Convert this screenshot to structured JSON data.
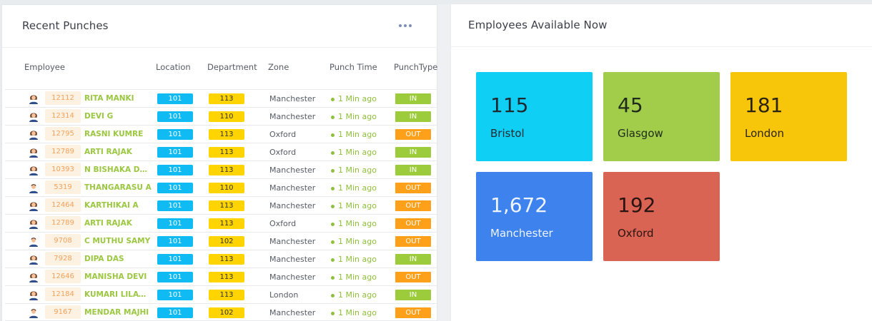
{
  "recent_punches": {
    "title": "Recent Punches",
    "menu_icon": "more-horizontal-icon",
    "columns": {
      "employee": "Employee",
      "location": "Location",
      "department": "Department",
      "zone": "Zone",
      "punch_time": "Punch Time",
      "punch_type": "PunchType"
    },
    "rows": [
      {
        "id": "12112",
        "name": "RITA MANKI",
        "location": "101",
        "department": "113",
        "zone": "Manchester",
        "time": "1 Min ago",
        "type": "IN",
        "avatar": "female-avatar-icon"
      },
      {
        "id": "12314",
        "name": "DEVI G",
        "location": "101",
        "department": "110",
        "zone": "Manchester",
        "time": "1 Min ago",
        "type": "IN",
        "avatar": "female-avatar-icon"
      },
      {
        "id": "12795",
        "name": "RASNI KUMRE",
        "location": "101",
        "department": "113",
        "zone": "Oxford",
        "time": "1 Min ago",
        "type": "OUT",
        "avatar": "female-avatar-icon"
      },
      {
        "id": "12789",
        "name": "ARTI RAJAK",
        "location": "101",
        "department": "113",
        "zone": "Oxford",
        "time": "1 Min ago",
        "type": "IN",
        "avatar": "female-avatar-icon"
      },
      {
        "id": "10393",
        "name": "N BISHAKA DAS ...",
        "location": "101",
        "department": "113",
        "zone": "Manchester",
        "time": "1 Min ago",
        "type": "IN",
        "avatar": "female-avatar-icon"
      },
      {
        "id": "5319",
        "name": "THANGARASU A",
        "location": "101",
        "department": "110",
        "zone": "Manchester",
        "time": "1 Min ago",
        "type": "OUT",
        "avatar": "male-avatar-icon"
      },
      {
        "id": "12464",
        "name": "KARTHIKAI A",
        "location": "101",
        "department": "113",
        "zone": "Manchester",
        "time": "1 Min ago",
        "type": "OUT",
        "avatar": "female-avatar-icon"
      },
      {
        "id": "12789",
        "name": "ARTI RAJAK",
        "location": "101",
        "department": "113",
        "zone": "Oxford",
        "time": "1 Min ago",
        "type": "OUT",
        "avatar": "female-avatar-icon"
      },
      {
        "id": "9708",
        "name": "C MUTHU SAMY",
        "location": "101",
        "department": "102",
        "zone": "Manchester",
        "time": "1 Min ago",
        "type": "OUT",
        "avatar": "male-avatar-icon"
      },
      {
        "id": "7928",
        "name": "DIPA DAS",
        "location": "101",
        "department": "113",
        "zone": "Manchester",
        "time": "1 Min ago",
        "type": "IN",
        "avatar": "female-avatar-icon"
      },
      {
        "id": "12646",
        "name": "MANISHA DEVI",
        "location": "101",
        "department": "113",
        "zone": "Manchester",
        "time": "1 Min ago",
        "type": "OUT",
        "avatar": "female-avatar-icon"
      },
      {
        "id": "12184",
        "name": "KUMARI LILAWA...",
        "location": "101",
        "department": "113",
        "zone": "London",
        "time": "1 Min ago",
        "type": "IN",
        "avatar": "female-avatar-icon"
      },
      {
        "id": "9167",
        "name": "MENDAR MAJHI",
        "location": "101",
        "department": "102",
        "zone": "Manchester",
        "time": "1 Min ago",
        "type": "OUT",
        "avatar": "male-avatar-icon"
      }
    ]
  },
  "employees_available": {
    "title": "Employees Available Now",
    "tiles": [
      {
        "count": "115",
        "city": "Bristol",
        "color": "#0fcff5",
        "text_color": "#1f2a30"
      },
      {
        "count": "45",
        "city": "Glasgow",
        "color": "#a1cd4a",
        "text_color": "#1f2a1a"
      },
      {
        "count": "181",
        "city": "London",
        "color": "#f7c50a",
        "text_color": "#2a2410"
      },
      {
        "count": "1,672",
        "city": "Manchester",
        "color": "#3e82ee",
        "text_color": "#eef4ff"
      },
      {
        "count": "192",
        "city": "Oxford",
        "color": "#da6453",
        "text_color": "#2a1411"
      }
    ]
  }
}
